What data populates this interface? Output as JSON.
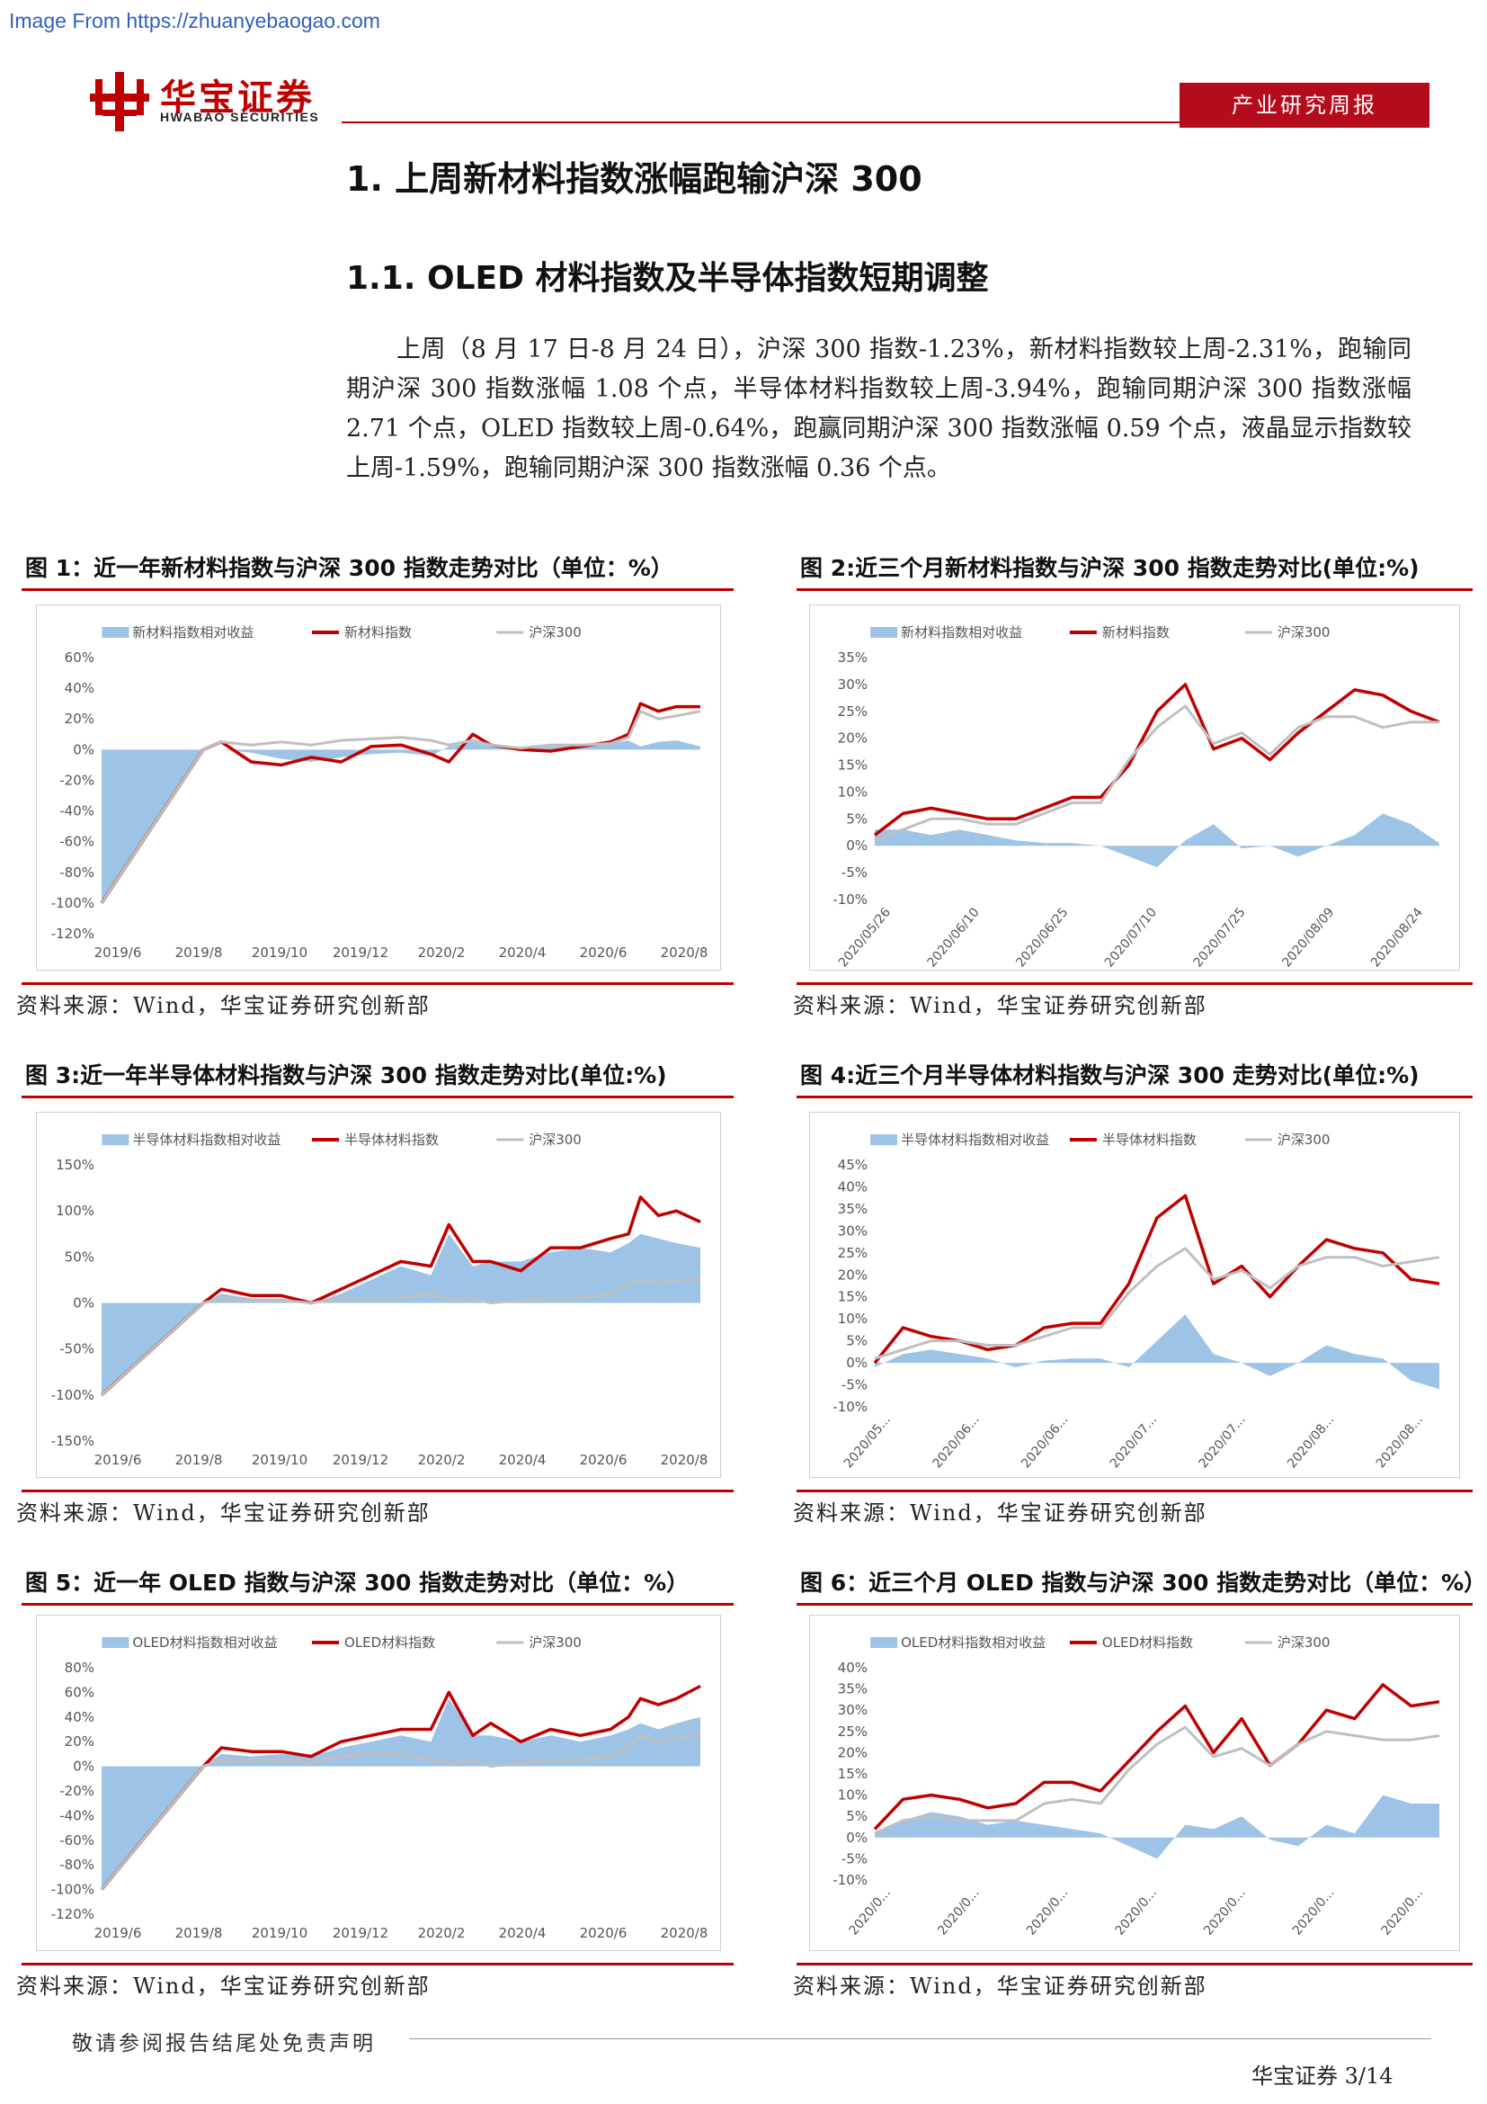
{
  "watermark": "Image From https://zhuanyebaogao.com",
  "header": {
    "logo_cn": "华宝证券",
    "logo_en": "HWABAO SECURITIES",
    "report_type": "产业研究周报",
    "brand_color": "#c00000"
  },
  "section": {
    "h1": "1. 上周新材料指数涨幅跑输沪深 300",
    "h2": "1.1. OLED 材料指数及半导体指数短期调整",
    "paragraph": "上周（8 月 17 日-8 月 24 日），沪深 300 指数-1.23%，新材料指数较上周-2.31%，跑输同期沪深 300 指数涨幅 1.08 个点，半导体材料指数较上周-3.94%，跑输同期沪深 300 指数涨幅 2.71 个点，OLED 指数较上周-0.64%，跑赢同期沪深 300 指数涨幅 0.59 个点，液晶显示指数较上周-1.59%，跑输同期沪深 300 指数涨幅 0.36 个点。"
  },
  "footer": {
    "disclaimer": "敬请参阅报告结尾处免责声明",
    "page": "华宝证券   3/14"
  },
  "colors": {
    "area": "#9dc3e6",
    "index_line": "#c00000",
    "hs300_line": "#bfbfbf"
  },
  "figures": [
    {
      "title": "图 1：近一年新材料指数与沪深 300 指数走势对比（单位：%）",
      "source": "资料来源：Wind，华宝证券研究创新部",
      "chart_data": {
        "type": "area",
        "legend": [
          "新材料指数相对收益",
          "新材料指数",
          "沪深300"
        ],
        "legend_position": "top",
        "y_ticks": [
          "60%",
          "40%",
          "20%",
          "0%",
          "-20%",
          "-40%",
          "-60%",
          "-80%",
          "-100%",
          "-120%"
        ],
        "ylim": [
          -120,
          60
        ],
        "x_ticks": [
          "2019/6",
          "2019/8",
          "2019/10",
          "2019/12",
          "2020/2",
          "2020/4",
          "2020/6",
          "2020/8"
        ],
        "x_tick_rotation": 0,
        "x": [
          0,
          0.17,
          0.2,
          0.25,
          0.3,
          0.35,
          0.4,
          0.45,
          0.5,
          0.55,
          0.58,
          0.62,
          0.65,
          0.7,
          0.75,
          0.8,
          0.85,
          0.88,
          0.9,
          0.93,
          0.96,
          1
        ],
        "series": [
          {
            "name": "新材料指数相对收益",
            "kind": "area",
            "values": [
              -100,
              0,
              0,
              -2,
              -6,
              -8,
              -5,
              -3,
              -2,
              -4,
              2,
              5,
              2,
              0,
              2,
              3,
              4,
              6,
              2,
              5,
              6,
              2
            ]
          },
          {
            "name": "新材料指数",
            "kind": "line",
            "values": [
              -100,
              0,
              5,
              -8,
              -10,
              -5,
              -8,
              2,
              3,
              -3,
              -8,
              10,
              3,
              0,
              -1,
              2,
              5,
              10,
              30,
              25,
              28,
              28
            ]
          },
          {
            "name": "沪深300",
            "kind": "line",
            "values": [
              -100,
              0,
              5,
              3,
              5,
              3,
              6,
              7,
              8,
              6,
              3,
              6,
              3,
              1,
              3,
              3,
              4,
              8,
              25,
              20,
              22,
              25
            ]
          }
        ]
      }
    },
    {
      "title": "图 2:近三个月新材料指数与沪深 300 指数走势对比(单位:%)",
      "source": "资料来源：Wind，华宝证券研究创新部",
      "chart_data": {
        "type": "area",
        "legend": [
          "新材料指数相对收益",
          "新材料指数",
          "沪深300"
        ],
        "legend_position": "top",
        "y_ticks": [
          "35%",
          "30%",
          "25%",
          "20%",
          "15%",
          "10%",
          "5%",
          "0%",
          "-5%",
          "-10%"
        ],
        "ylim": [
          -10,
          35
        ],
        "x_ticks": [
          "2020/05/26",
          "2020/06/10",
          "2020/06/25",
          "2020/07/10",
          "2020/07/25",
          "2020/08/09",
          "2020/08/24"
        ],
        "x_tick_rotation": -50,
        "x": [
          0,
          0.05,
          0.1,
          0.15,
          0.2,
          0.25,
          0.3,
          0.35,
          0.4,
          0.45,
          0.5,
          0.55,
          0.6,
          0.65,
          0.7,
          0.75,
          0.8,
          0.85,
          0.9,
          0.95,
          1
        ],
        "series": [
          {
            "name": "新材料指数相对收益",
            "kind": "area",
            "values": [
              3,
              3,
              2,
              3,
              2,
              1,
              0.5,
              0.5,
              0,
              -2,
              -4,
              1,
              4,
              -0.5,
              0,
              -2,
              0,
              2,
              6,
              4,
              0.5
            ]
          },
          {
            "name": "新材料指数",
            "kind": "line",
            "values": [
              2,
              6,
              7,
              6,
              5,
              5,
              7,
              9,
              9,
              15,
              25,
              30,
              18,
              20,
              16,
              21,
              25,
              29,
              28,
              25,
              23
            ]
          },
          {
            "name": "沪深300",
            "kind": "line",
            "values": [
              1,
              3,
              5,
              5,
              4,
              4,
              6,
              8,
              8,
              16,
              22,
              26,
              19,
              21,
              17,
              22,
              24,
              24,
              22,
              23,
              23
            ]
          }
        ]
      }
    },
    {
      "title": "图 3:近一年半导体材料指数与沪深 300 指数走势对比(单位:%)",
      "source": "资料来源：Wind，华宝证券研究创新部",
      "chart_data": {
        "type": "area",
        "legend": [
          "半导体材料指数相对收益",
          "半导体材料指数",
          "沪深300"
        ],
        "legend_position": "top",
        "y_ticks": [
          "150%",
          "100%",
          "50%",
          "0%",
          "-50%",
          "-100%",
          "-150%"
        ],
        "ylim": [
          -150,
          150
        ],
        "x_ticks": [
          "2019/6",
          "2019/8",
          "2019/10",
          "2019/12",
          "2020/2",
          "2020/4",
          "2020/6",
          "2020/8"
        ],
        "x_tick_rotation": 0,
        "x": [
          0,
          0.17,
          0.2,
          0.25,
          0.3,
          0.35,
          0.4,
          0.45,
          0.5,
          0.55,
          0.58,
          0.62,
          0.65,
          0.7,
          0.75,
          0.8,
          0.85,
          0.88,
          0.9,
          0.93,
          0.96,
          1
        ],
        "series": [
          {
            "name": "半导体材料指数相对收益",
            "kind": "area",
            "values": [
              -100,
              0,
              10,
              5,
              5,
              0,
              10,
              25,
              40,
              30,
              75,
              40,
              45,
              45,
              55,
              60,
              55,
              65,
              75,
              70,
              65,
              60
            ]
          },
          {
            "name": "半导体材料指数",
            "kind": "line",
            "values": [
              -100,
              0,
              15,
              8,
              8,
              0,
              15,
              30,
              45,
              40,
              85,
              45,
              45,
              35,
              60,
              60,
              70,
              75,
              115,
              95,
              100,
              88
            ]
          },
          {
            "name": "沪深300",
            "kind": "line",
            "values": [
              -100,
              0,
              5,
              3,
              3,
              0,
              5,
              5,
              5,
              10,
              3,
              5,
              0,
              3,
              5,
              5,
              10,
              20,
              25,
              22,
              24,
              26
            ]
          }
        ]
      }
    },
    {
      "title": "图 4:近三个月半导体材料指数与沪深 300 走势对比(单位:%)",
      "source": "资料来源：Wind，华宝证券研究创新部",
      "chart_data": {
        "type": "area",
        "legend": [
          "半导体材料指数相对收益",
          "半导体材料指数",
          "沪深300"
        ],
        "legend_position": "top",
        "y_ticks": [
          "45%",
          "40%",
          "35%",
          "30%",
          "25%",
          "20%",
          "15%",
          "10%",
          "5%",
          "0%",
          "-5%",
          "-10%"
        ],
        "ylim": [
          -10,
          45
        ],
        "x_ticks": [
          "2020/05...",
          "2020/06...",
          "2020/06...",
          "2020/07...",
          "2020/07...",
          "2020/08...",
          "2020/08..."
        ],
        "x_tick_rotation": -50,
        "x": [
          0,
          0.05,
          0.1,
          0.15,
          0.2,
          0.25,
          0.3,
          0.35,
          0.4,
          0.45,
          0.5,
          0.55,
          0.6,
          0.65,
          0.7,
          0.75,
          0.8,
          0.85,
          0.9,
          0.95,
          1
        ],
        "series": [
          {
            "name": "半导体材料指数相对收益",
            "kind": "area",
            "values": [
              -1,
              2,
              3,
              2,
              1,
              -1,
              0.5,
              1,
              1,
              -1,
              5,
              11,
              2,
              0,
              -3,
              0,
              4,
              2,
              1,
              -4,
              -6
            ]
          },
          {
            "name": "半导体材料指数",
            "kind": "line",
            "values": [
              0,
              8,
              6,
              5,
              3,
              4,
              8,
              9,
              9,
              18,
              33,
              38,
              18,
              22,
              15,
              22,
              28,
              26,
              25,
              19,
              18
            ]
          },
          {
            "name": "沪深300",
            "kind": "line",
            "values": [
              1,
              3,
              5,
              5,
              4,
              4,
              6,
              8,
              8,
              16,
              22,
              26,
              19,
              21,
              17,
              22,
              24,
              24,
              22,
              23,
              24
            ]
          }
        ]
      }
    },
    {
      "title": "图 5：近一年 OLED 指数与沪深 300 指数走势对比（单位：%）",
      "source": "资料来源：Wind，华宝证券研究创新部",
      "chart_data": {
        "type": "area",
        "legend": [
          "OLED材料指数相对收益",
          "OLED材料指数",
          "沪深300"
        ],
        "legend_position": "top",
        "y_ticks": [
          "80%",
          "60%",
          "40%",
          "20%",
          "0%",
          "-20%",
          "-40%",
          "-60%",
          "-80%",
          "-100%",
          "-120%"
        ],
        "ylim": [
          -120,
          80
        ],
        "x_ticks": [
          "2019/6",
          "2019/8",
          "2019/10",
          "2019/12",
          "2020/2",
          "2020/4",
          "2020/6",
          "2020/8"
        ],
        "x_tick_rotation": 0,
        "x": [
          0,
          0.17,
          0.2,
          0.25,
          0.3,
          0.35,
          0.4,
          0.45,
          0.5,
          0.55,
          0.58,
          0.62,
          0.65,
          0.7,
          0.75,
          0.8,
          0.85,
          0.88,
          0.9,
          0.93,
          0.96,
          1
        ],
        "series": [
          {
            "name": "OLED材料指数相对收益",
            "kind": "area",
            "values": [
              -100,
              0,
              10,
              8,
              10,
              8,
              15,
              20,
              25,
              20,
              55,
              25,
              25,
              20,
              25,
              20,
              25,
              30,
              35,
              30,
              35,
              40
            ]
          },
          {
            "name": "OLED材料指数",
            "kind": "line",
            "values": [
              -100,
              0,
              15,
              12,
              12,
              8,
              20,
              25,
              30,
              30,
              60,
              25,
              35,
              20,
              30,
              25,
              30,
              40,
              55,
              50,
              55,
              65
            ]
          },
          {
            "name": "沪深300",
            "kind": "line",
            "values": [
              -100,
              0,
              5,
              5,
              5,
              3,
              8,
              10,
              10,
              5,
              3,
              5,
              0,
              3,
              5,
              5,
              8,
              15,
              25,
              20,
              22,
              26
            ]
          }
        ]
      }
    },
    {
      "title": "图 6：近三个月 OLED 指数与沪深 300 指数走势对比（单位：%）",
      "source": "资料来源：Wind，华宝证券研究创新部",
      "chart_data": {
        "type": "area",
        "legend": [
          "OLED材料指数相对收益",
          "OLED材料指数",
          "沪深300"
        ],
        "legend_position": "top",
        "y_ticks": [
          "40%",
          "35%",
          "30%",
          "25%",
          "20%",
          "15%",
          "10%",
          "5%",
          "0%",
          "-5%",
          "-10%"
        ],
        "ylim": [
          -10,
          40
        ],
        "x_ticks": [
          "2020/0...",
          "2020/0...",
          "2020/0...",
          "2020/0...",
          "2020/0...",
          "2020/0...",
          "2020/0..."
        ],
        "x_tick_rotation": -50,
        "x": [
          0,
          0.05,
          0.1,
          0.15,
          0.2,
          0.25,
          0.3,
          0.35,
          0.4,
          0.45,
          0.5,
          0.55,
          0.6,
          0.65,
          0.7,
          0.75,
          0.8,
          0.85,
          0.9,
          0.95,
          1
        ],
        "series": [
          {
            "name": "OLED材料指数相对收益",
            "kind": "area",
            "values": [
              1,
              4,
              6,
              5,
              3,
              4,
              3,
              2,
              1,
              -2,
              -5,
              3,
              2,
              5,
              -0.5,
              -2,
              3,
              1,
              10,
              8,
              8
            ]
          },
          {
            "name": "OLED材料指数",
            "kind": "line",
            "values": [
              2,
              9,
              10,
              9,
              7,
              8,
              13,
              13,
              11,
              18,
              25,
              31,
              20,
              28,
              17,
              22,
              30,
              28,
              36,
              31,
              32
            ]
          },
          {
            "name": "沪深300",
            "kind": "line",
            "values": [
              1,
              4,
              5,
              4,
              4,
              4,
              8,
              9,
              8,
              16,
              22,
              26,
              19,
              21,
              17,
              22,
              25,
              24,
              23,
              23,
              24
            ]
          }
        ]
      }
    }
  ]
}
